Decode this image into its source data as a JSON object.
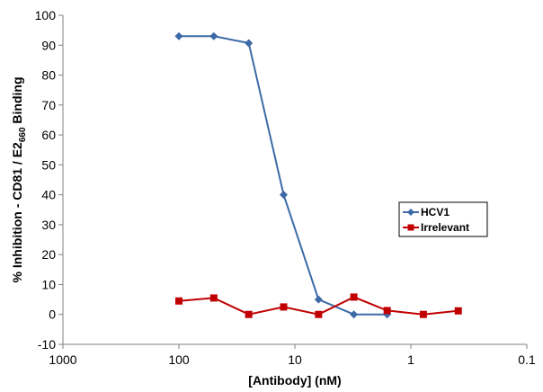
{
  "chart_data": {
    "type": "line",
    "xscale": "log",
    "xreversed": true,
    "xlim": [
      1000,
      0.1
    ],
    "ylim": [
      -10,
      100
    ],
    "xticks": [
      1000,
      100,
      10,
      1,
      0.1
    ],
    "xtick_labels": [
      "1000",
      "100",
      "10",
      "1",
      "0.1"
    ],
    "yticks": [
      -10,
      0,
      10,
      20,
      30,
      40,
      50,
      60,
      70,
      80,
      90,
      100
    ],
    "ytick_labels": [
      "-10",
      "0",
      "10",
      "20",
      "30",
      "40",
      "50",
      "60",
      "70",
      "80",
      "90",
      "100"
    ],
    "xlabel": "[Antibody] (nM)",
    "ylabel": {
      "prefix": "% Inhibition - CD81 / E2",
      "subscript": "660",
      "suffix": " Binding"
    },
    "grid": false,
    "legend_position": "right",
    "series": [
      {
        "name": "HCV1",
        "color": "#3d6aa6",
        "marker": "diamond",
        "x": [
          100,
          50,
          25,
          12.5,
          6.25,
          3.1,
          1.6
        ],
        "y": [
          93,
          93,
          90.7,
          40,
          5,
          0,
          0
        ]
      },
      {
        "name": "Irrelevant",
        "color": "#c00000",
        "marker": "square",
        "x": [
          100,
          50,
          25,
          12.5,
          6.25,
          3.1,
          1.6,
          0.78,
          0.39
        ],
        "y": [
          4.5,
          5.5,
          0,
          2.5,
          0,
          5.8,
          1.3,
          0,
          1.2
        ]
      }
    ]
  }
}
